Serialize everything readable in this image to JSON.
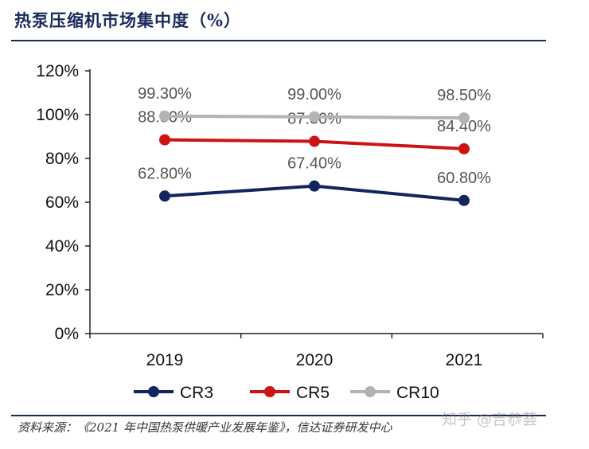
{
  "header": {
    "title": "热泵压缩机市场集中度（%）"
  },
  "footer": {
    "source": "资料来源：《2021 年中国热泵供暖产业发展年鉴》，信达证券研发中心",
    "watermark": "知乎 @吉恭荟"
  },
  "chart_data": {
    "type": "line",
    "categories": [
      "2019",
      "2020",
      "2021"
    ],
    "y_tick_labels": [
      "0%",
      "20%",
      "40%",
      "60%",
      "80%",
      "100%",
      "120%"
    ],
    "ylim": [
      0,
      120
    ],
    "grid": false,
    "legend_position": "bottom",
    "series": [
      {
        "name": "CR3",
        "values": [
          62.8,
          67.4,
          60.8
        ],
        "labels": [
          "62.80%",
          "67.40%",
          "60.80%"
        ],
        "color": "#13255e"
      },
      {
        "name": "CR5",
        "values": [
          88.5,
          87.8,
          84.4
        ],
        "labels": [
          "88.50%",
          "87.80%",
          "84.40%"
        ],
        "color": "#cc1414"
      },
      {
        "name": "CR10",
        "values": [
          99.3,
          99.0,
          98.5
        ],
        "labels": [
          "99.30%",
          "99.00%",
          "98.50%"
        ],
        "color": "#b3b3b3"
      }
    ]
  }
}
